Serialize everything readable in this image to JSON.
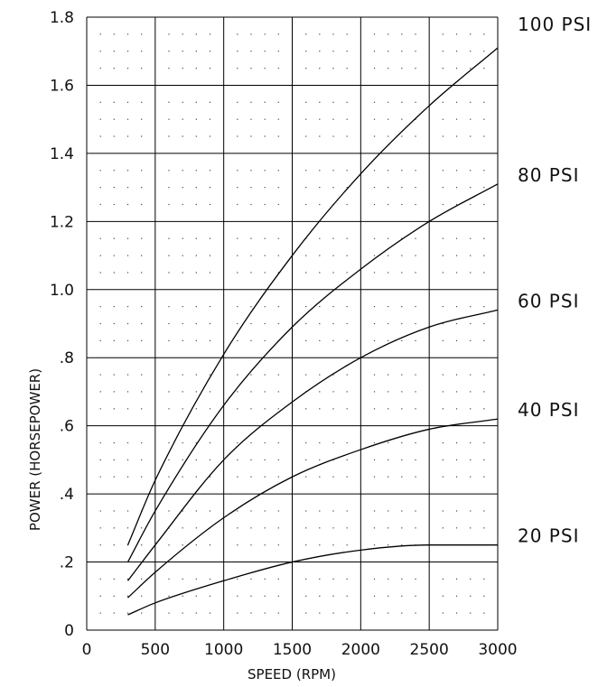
{
  "chart_data": {
    "type": "line",
    "xlabel": "SPEED (RPM)",
    "ylabel": "POWER (HORSEPOWER)",
    "xlim": [
      0,
      3000
    ],
    "ylim": [
      0,
      1.8
    ],
    "x_ticks": [
      0,
      500,
      1000,
      1500,
      2000,
      2500,
      3000
    ],
    "x_tick_labels": [
      "0",
      "500",
      "1000",
      "1500",
      "2000",
      "2500",
      "3000"
    ],
    "y_ticks": [
      0,
      0.2,
      0.4,
      0.6,
      0.8,
      1.0,
      1.2,
      1.4,
      1.6,
      1.8
    ],
    "y_tick_labels": [
      "0",
      ".2",
      ".4",
      ".6",
      ".8",
      "1.0",
      "1.2",
      "1.4",
      "1.6",
      "1.8"
    ],
    "grid": true,
    "minor_grid_dots": true,
    "line_color": "#000000",
    "series": [
      {
        "name": "100 PSI",
        "x": [
          300,
          500,
          1000,
          1500,
          2000,
          2500,
          3000
        ],
        "y": [
          0.25,
          0.44,
          0.81,
          1.1,
          1.34,
          1.54,
          1.71
        ]
      },
      {
        "name": "80 PSI",
        "x": [
          300,
          500,
          1000,
          1500,
          2000,
          2500,
          3000
        ],
        "y": [
          0.2,
          0.35,
          0.66,
          0.89,
          1.06,
          1.2,
          1.31
        ]
      },
      {
        "name": "60 PSI",
        "x": [
          300,
          500,
          1000,
          1500,
          2000,
          2500,
          3000
        ],
        "y": [
          0.145,
          0.25,
          0.5,
          0.67,
          0.8,
          0.89,
          0.94
        ]
      },
      {
        "name": "40 PSI",
        "x": [
          300,
          500,
          1000,
          1500,
          2000,
          2500,
          3000
        ],
        "y": [
          0.095,
          0.17,
          0.33,
          0.45,
          0.53,
          0.59,
          0.62
        ]
      },
      {
        "name": "20 PSI",
        "x": [
          300,
          500,
          1000,
          1500,
          2000,
          2500,
          3000
        ],
        "y": [
          0.045,
          0.08,
          0.145,
          0.2,
          0.235,
          0.25,
          0.25
        ]
      }
    ]
  }
}
